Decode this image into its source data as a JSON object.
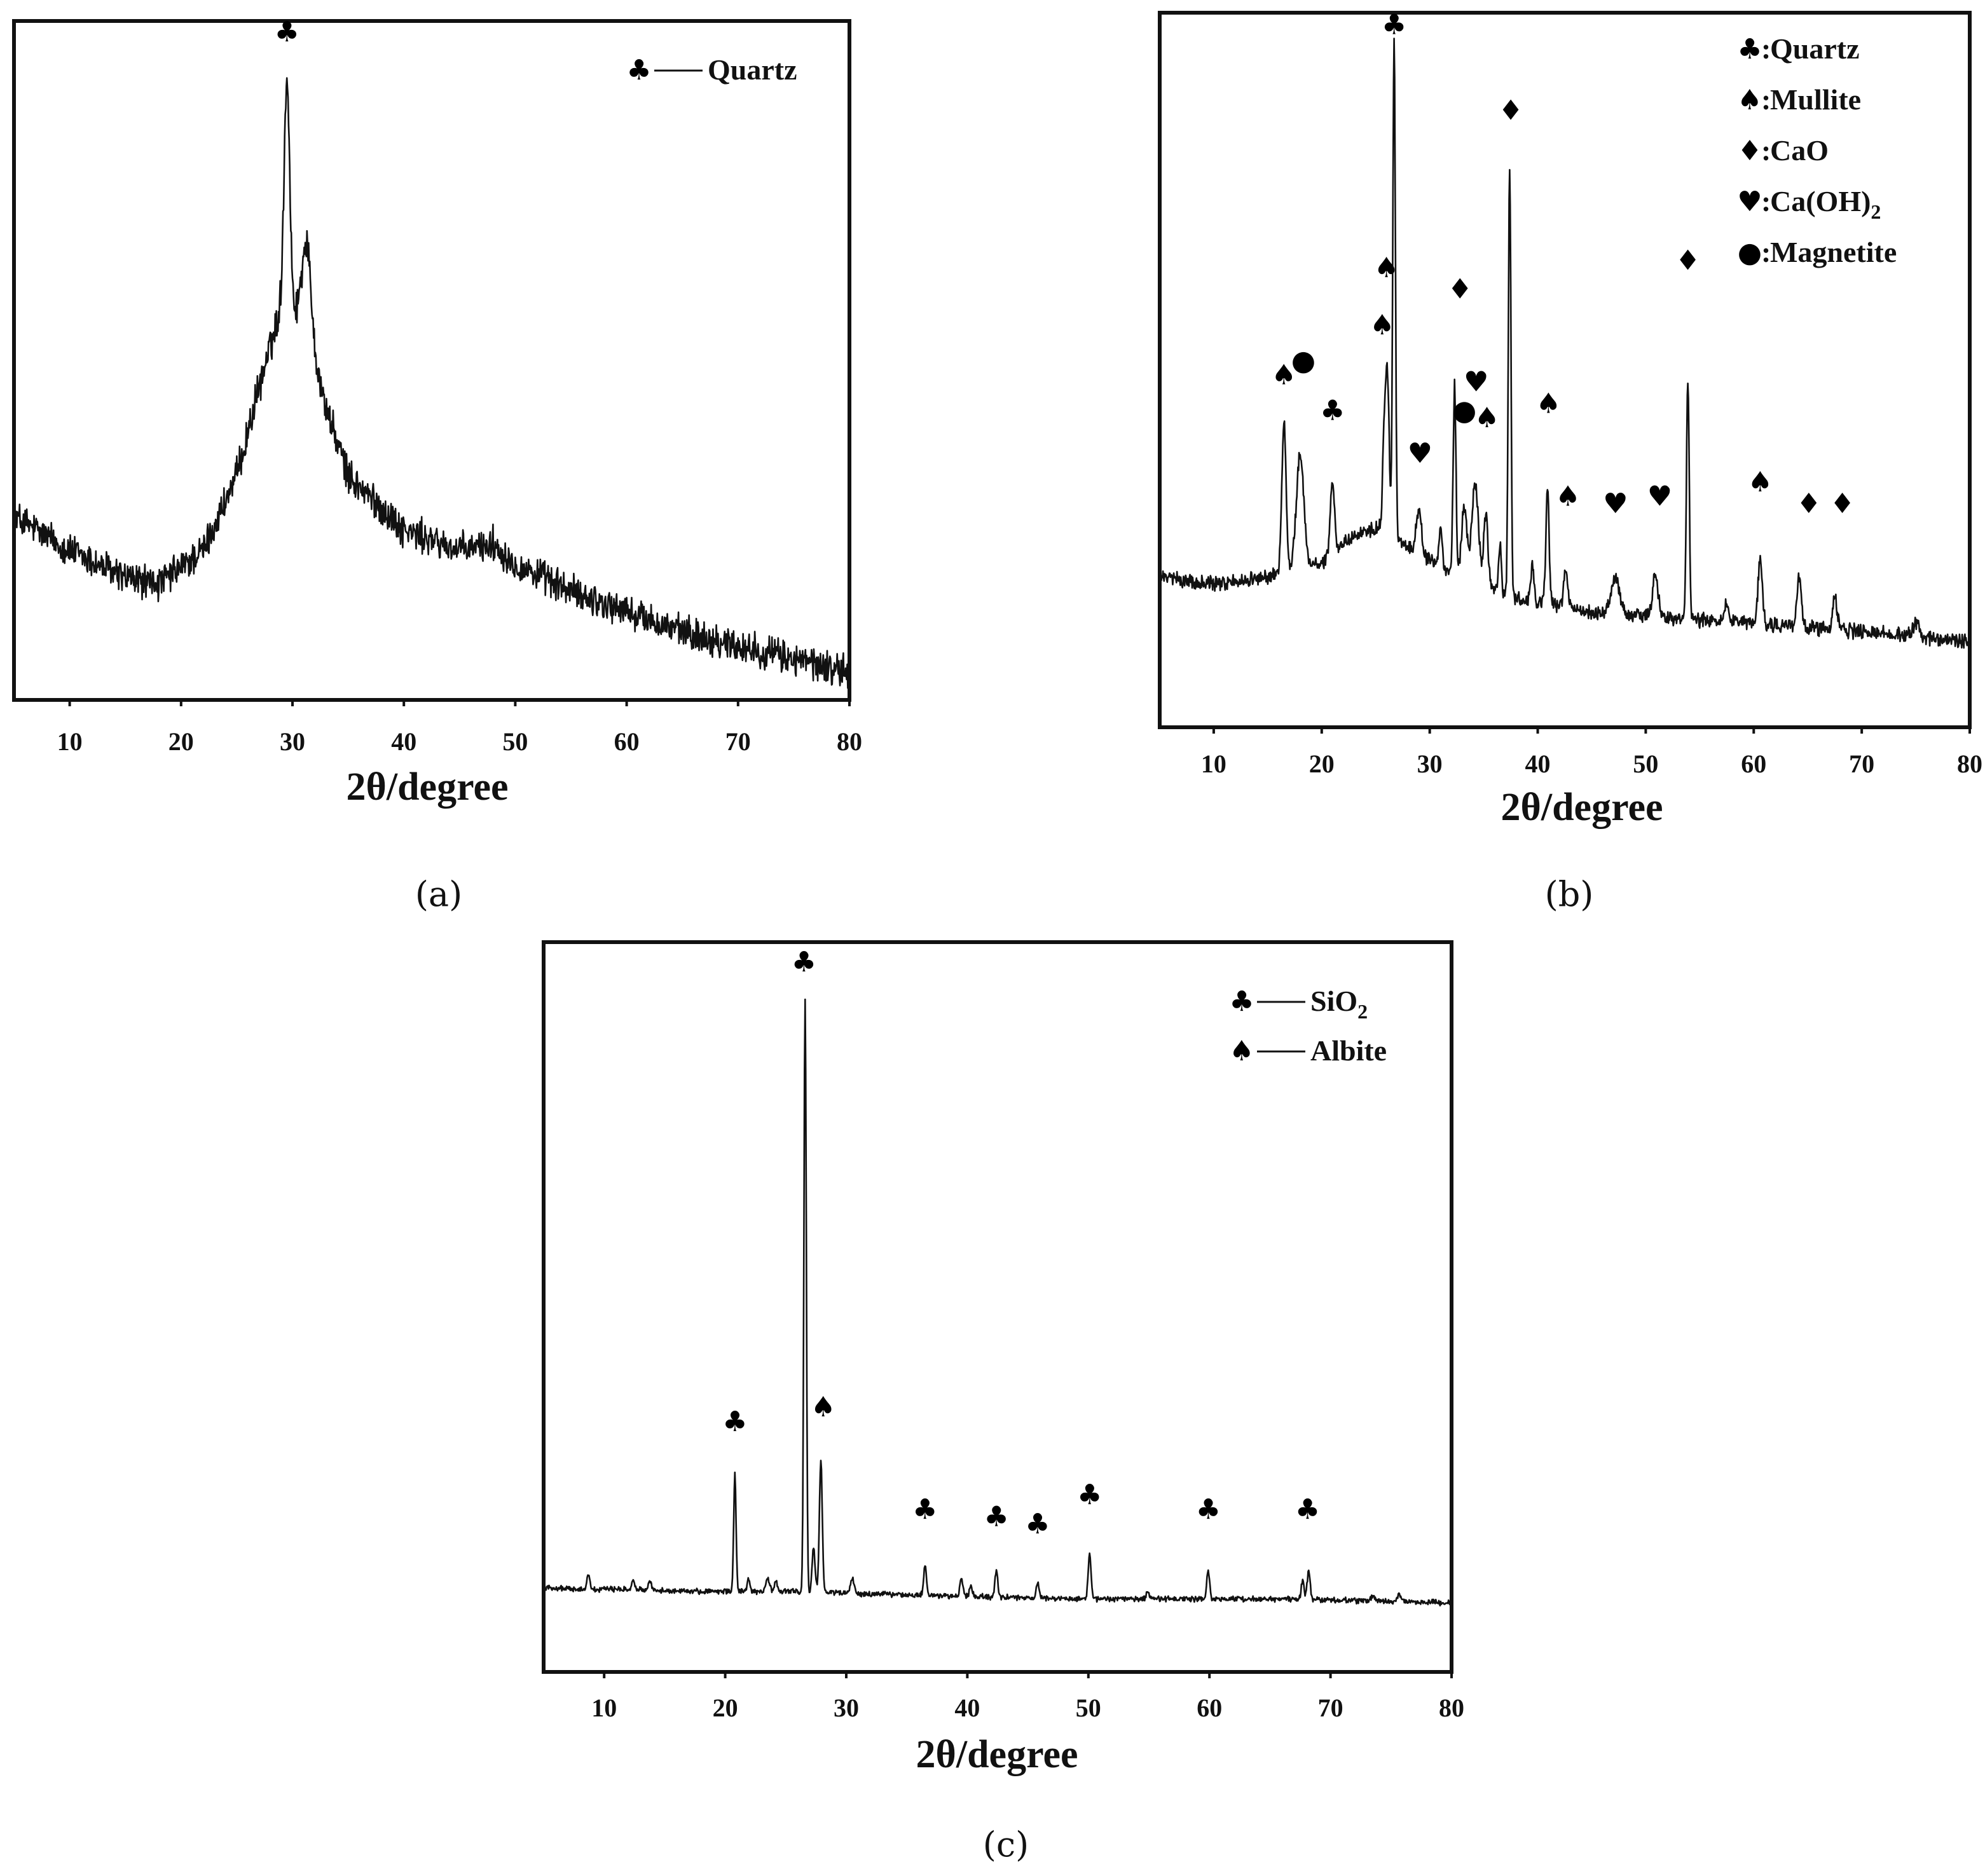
{
  "chart_data": [
    {
      "id": "a",
      "type": "line",
      "caption": "(a)",
      "xlabel": "2θ/degree",
      "ylabel": "",
      "xlim": [
        5,
        80
      ],
      "xticks": [
        10,
        20,
        30,
        40,
        50,
        60,
        70,
        80
      ],
      "legend_position": "top-right",
      "legend": [
        {
          "symbol": "♣",
          "style": "dash",
          "label": "Quartz"
        }
      ],
      "baseline": [
        [
          5,
          0.27
        ],
        [
          10,
          0.22
        ],
        [
          15,
          0.18
        ],
        [
          18,
          0.17
        ],
        [
          22,
          0.22
        ],
        [
          25,
          0.33
        ],
        [
          27,
          0.46
        ],
        [
          29,
          0.58
        ],
        [
          31,
          0.57
        ],
        [
          33,
          0.43
        ],
        [
          35,
          0.33
        ],
        [
          40,
          0.25
        ],
        [
          45,
          0.22
        ],
        [
          48,
          0.23
        ],
        [
          50,
          0.2
        ],
        [
          55,
          0.16
        ],
        [
          60,
          0.13
        ],
        [
          65,
          0.1
        ],
        [
          70,
          0.08
        ],
        [
          75,
          0.06
        ],
        [
          80,
          0.04
        ]
      ],
      "noise": 0.02,
      "peaks": [
        {
          "x": 29.5,
          "h": 0.34,
          "w": 0.25
        },
        {
          "x": 31.3,
          "h": 0.12,
          "w": 0.4
        }
      ],
      "markers": [
        {
          "x": 29.5,
          "y": 0.97,
          "symbol": "♣"
        }
      ]
    },
    {
      "id": "b",
      "type": "line",
      "caption": "(b)",
      "xlabel": "2θ/degree",
      "ylabel": "",
      "xlim": [
        5,
        80
      ],
      "xticks": [
        10,
        20,
        30,
        40,
        50,
        60,
        70,
        80
      ],
      "legend_position": "top-right",
      "legend": [
        {
          "symbol": "♣",
          "style": "colon",
          "label": "Quartz",
          "sub": ""
        },
        {
          "symbol": "♠",
          "style": "colon",
          "label": "Mullite",
          "sub": ""
        },
        {
          "symbol": "♦",
          "style": "colon",
          "label": "CaO",
          "sub": ""
        },
        {
          "symbol": "♥",
          "style": "colon",
          "label": "Ca(OH)",
          "sub": "2"
        },
        {
          "symbol": "●",
          "style": "colon",
          "label": "Magnetite",
          "sub": ""
        }
      ],
      "baseline": [
        [
          5,
          0.21
        ],
        [
          10,
          0.2
        ],
        [
          15,
          0.21
        ],
        [
          20,
          0.23
        ],
        [
          23,
          0.27
        ],
        [
          26,
          0.28
        ],
        [
          29,
          0.24
        ],
        [
          33,
          0.21
        ],
        [
          38,
          0.18
        ],
        [
          45,
          0.16
        ],
        [
          55,
          0.15
        ],
        [
          65,
          0.14
        ],
        [
          80,
          0.12
        ]
      ],
      "noise": 0.008,
      "peaks": [
        {
          "x": 16.5,
          "h": 0.21,
          "w": 0.2
        },
        {
          "x": 18.0,
          "h": 0.16,
          "w": 0.35
        },
        {
          "x": 21.0,
          "h": 0.1,
          "w": 0.2
        },
        {
          "x": 25.8,
          "h": 0.14,
          "w": 0.15
        },
        {
          "x": 26.1,
          "h": 0.2,
          "w": 0.15
        },
        {
          "x": 26.7,
          "h": 0.69,
          "w": 0.12
        },
        {
          "x": 29.0,
          "h": 0.06,
          "w": 0.25
        },
        {
          "x": 31.0,
          "h": 0.05,
          "w": 0.15
        },
        {
          "x": 32.3,
          "h": 0.26,
          "w": 0.13
        },
        {
          "x": 33.2,
          "h": 0.1,
          "w": 0.25
        },
        {
          "x": 34.2,
          "h": 0.14,
          "w": 0.3
        },
        {
          "x": 35.2,
          "h": 0.1,
          "w": 0.2
        },
        {
          "x": 36.5,
          "h": 0.07,
          "w": 0.12
        },
        {
          "x": 37.4,
          "h": 0.6,
          "w": 0.12
        },
        {
          "x": 39.5,
          "h": 0.05,
          "w": 0.15
        },
        {
          "x": 40.9,
          "h": 0.16,
          "w": 0.15
        },
        {
          "x": 42.6,
          "h": 0.05,
          "w": 0.2
        },
        {
          "x": 47.2,
          "h": 0.05,
          "w": 0.4
        },
        {
          "x": 50.9,
          "h": 0.06,
          "w": 0.25
        },
        {
          "x": 53.9,
          "h": 0.34,
          "w": 0.13
        },
        {
          "x": 57.5,
          "h": 0.03,
          "w": 0.2
        },
        {
          "x": 60.6,
          "h": 0.09,
          "w": 0.2
        },
        {
          "x": 64.2,
          "h": 0.07,
          "w": 0.2
        },
        {
          "x": 67.5,
          "h": 0.05,
          "w": 0.2
        },
        {
          "x": 75.0,
          "h": 0.02,
          "w": 0.3
        }
      ],
      "markers": [
        {
          "x": 16.5,
          "y": 0.48,
          "symbol": "♠"
        },
        {
          "x": 18.3,
          "y": 0.5,
          "symbol": "●"
        },
        {
          "x": 21.0,
          "y": 0.43,
          "symbol": "♣"
        },
        {
          "x": 25.6,
          "y": 0.55,
          "symbol": "♠"
        },
        {
          "x": 26.0,
          "y": 0.63,
          "symbol": "♠"
        },
        {
          "x": 26.7,
          "y": 0.97,
          "symbol": "♣"
        },
        {
          "x": 29.1,
          "y": 0.37,
          "symbol": "♥"
        },
        {
          "x": 32.8,
          "y": 0.6,
          "symbol": "♦"
        },
        {
          "x": 33.2,
          "y": 0.43,
          "symbol": "●"
        },
        {
          "x": 34.3,
          "y": 0.47,
          "symbol": "♥"
        },
        {
          "x": 35.3,
          "y": 0.42,
          "symbol": "♠"
        },
        {
          "x": 37.5,
          "y": 0.85,
          "symbol": "♦"
        },
        {
          "x": 41.0,
          "y": 0.44,
          "symbol": "♠"
        },
        {
          "x": 42.8,
          "y": 0.31,
          "symbol": "♠"
        },
        {
          "x": 47.2,
          "y": 0.3,
          "symbol": "♥"
        },
        {
          "x": 51.3,
          "y": 0.31,
          "symbol": "♥"
        },
        {
          "x": 53.9,
          "y": 0.64,
          "symbol": "♦"
        },
        {
          "x": 60.6,
          "y": 0.33,
          "symbol": "♠"
        },
        {
          "x": 65.1,
          "y": 0.3,
          "symbol": "♦"
        },
        {
          "x": 68.2,
          "y": 0.3,
          "symbol": "♦"
        }
      ]
    },
    {
      "id": "c",
      "type": "line",
      "caption": "(c)",
      "xlabel": "2θ/degree",
      "ylabel": "",
      "xlim": [
        5,
        80
      ],
      "xticks": [
        10,
        20,
        30,
        40,
        50,
        60,
        70,
        80
      ],
      "legend_position": "top-right",
      "legend": [
        {
          "symbol": "♣",
          "style": "dash",
          "label": "SiO",
          "sub": "2"
        },
        {
          "symbol": "♠",
          "style": "dash",
          "label": "Albite",
          "sub": ""
        }
      ],
      "baseline": [
        [
          5,
          0.115
        ],
        [
          20,
          0.11
        ],
        [
          27,
          0.11
        ],
        [
          35,
          0.105
        ],
        [
          50,
          0.1
        ],
        [
          65,
          0.1
        ],
        [
          80,
          0.095
        ]
      ],
      "noise": 0.003,
      "peaks": [
        {
          "x": 8.7,
          "h": 0.018,
          "w": 0.12
        },
        {
          "x": 12.4,
          "h": 0.01,
          "w": 0.12
        },
        {
          "x": 13.8,
          "h": 0.012,
          "w": 0.12
        },
        {
          "x": 20.8,
          "h": 0.16,
          "w": 0.1
        },
        {
          "x": 21.9,
          "h": 0.02,
          "w": 0.1
        },
        {
          "x": 23.5,
          "h": 0.02,
          "w": 0.15
        },
        {
          "x": 24.2,
          "h": 0.015,
          "w": 0.12
        },
        {
          "x": 26.6,
          "h": 0.81,
          "w": 0.1
        },
        {
          "x": 27.3,
          "h": 0.06,
          "w": 0.12
        },
        {
          "x": 27.9,
          "h": 0.18,
          "w": 0.12
        },
        {
          "x": 30.5,
          "h": 0.02,
          "w": 0.15
        },
        {
          "x": 36.5,
          "h": 0.04,
          "w": 0.12
        },
        {
          "x": 39.5,
          "h": 0.025,
          "w": 0.12
        },
        {
          "x": 40.3,
          "h": 0.015,
          "w": 0.12
        },
        {
          "x": 42.4,
          "h": 0.035,
          "w": 0.12
        },
        {
          "x": 45.8,
          "h": 0.02,
          "w": 0.12
        },
        {
          "x": 50.1,
          "h": 0.06,
          "w": 0.12
        },
        {
          "x": 54.9,
          "h": 0.012,
          "w": 0.12
        },
        {
          "x": 59.9,
          "h": 0.04,
          "w": 0.12
        },
        {
          "x": 67.7,
          "h": 0.025,
          "w": 0.12
        },
        {
          "x": 68.2,
          "h": 0.04,
          "w": 0.12
        },
        {
          "x": 73.5,
          "h": 0.008,
          "w": 0.15
        },
        {
          "x": 75.7,
          "h": 0.008,
          "w": 0.15
        }
      ],
      "markers": [
        {
          "x": 26.5,
          "y": 0.96,
          "symbol": "♣"
        },
        {
          "x": 20.8,
          "y": 0.33,
          "symbol": "♣"
        },
        {
          "x": 28.1,
          "y": 0.35,
          "symbol": "♠"
        },
        {
          "x": 36.5,
          "y": 0.21,
          "symbol": "♣"
        },
        {
          "x": 42.4,
          "y": 0.2,
          "symbol": "♣"
        },
        {
          "x": 45.8,
          "y": 0.19,
          "symbol": "♣"
        },
        {
          "x": 50.1,
          "y": 0.23,
          "symbol": "♣"
        },
        {
          "x": 59.9,
          "y": 0.21,
          "symbol": "♣"
        },
        {
          "x": 68.1,
          "y": 0.21,
          "symbol": "♣"
        }
      ]
    }
  ]
}
